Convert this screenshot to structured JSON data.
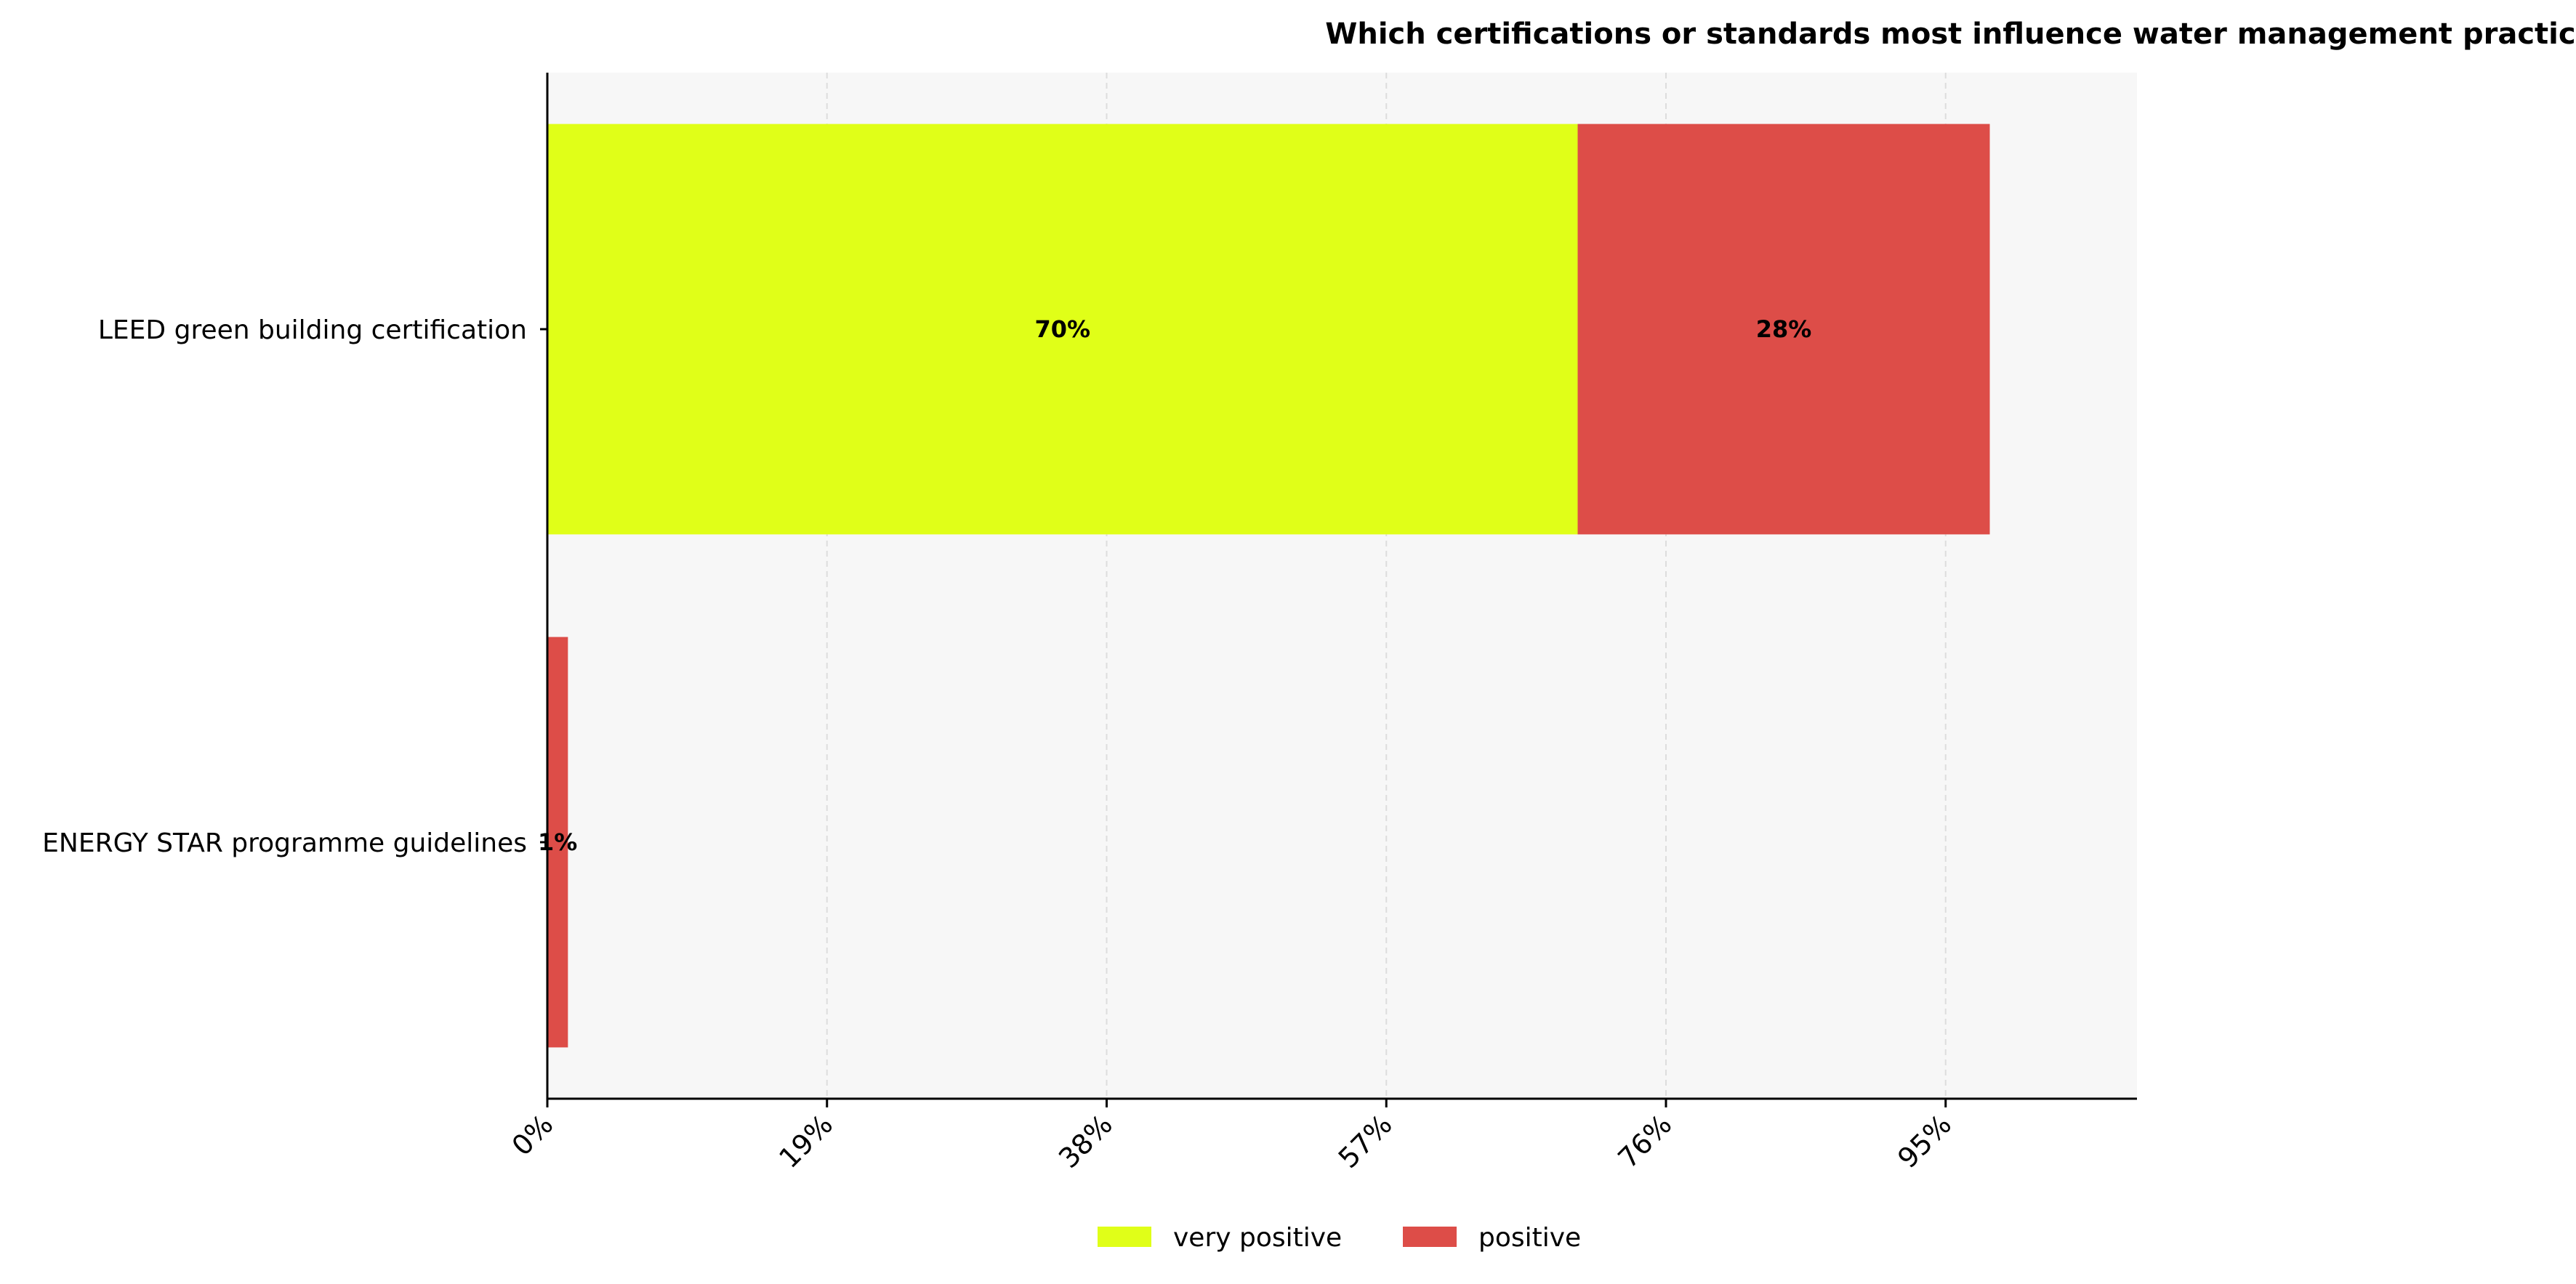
{
  "chart_data": {
    "type": "bar",
    "orientation": "horizontal",
    "stacked": true,
    "title": "Which certifications or standards most influence water management practices related to airport water consumption?",
    "xlabel": "",
    "ylabel": "",
    "categories": [
      "LEED green building certification",
      "ENERGY STAR programme guidelines"
    ],
    "series": [
      {
        "name": "very positive",
        "color": "#e0ff18",
        "values": [
          70,
          0
        ],
        "labels": [
          "70%",
          ""
        ]
      },
      {
        "name": "positive",
        "color": "#dd4d48",
        "values": [
          28,
          1.4
        ],
        "labels": [
          "28%",
          "1%"
        ]
      }
    ],
    "xlim": [
      0,
      108
    ],
    "xticks": [
      0,
      19,
      38,
      57,
      76,
      95
    ],
    "xtick_labels": [
      "0%",
      "19%",
      "38%",
      "57%",
      "76%",
      "95%"
    ],
    "grid": "vertical dashed",
    "legend": "bottom-center",
    "plot_background": "#f7f7f7"
  }
}
